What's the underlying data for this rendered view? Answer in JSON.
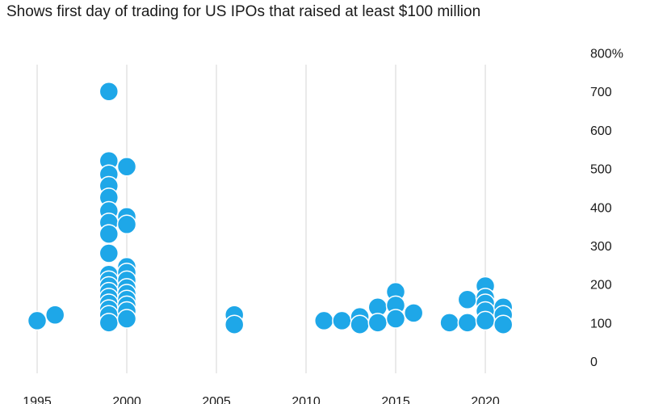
{
  "header": {
    "subtitle": "Shows first day of trading for US IPOs that raised at least $100 million"
  },
  "colors": {
    "dot": "#1ea7e8",
    "grid": "#d6d6d6",
    "text": "#1a1a1a"
  },
  "chart_data": {
    "type": "scatter",
    "title": "",
    "subtitle": "Shows first day of trading for US IPOs that raised at least $100 million",
    "xlabel": "",
    "ylabel": "",
    "x_ticks": [
      "1995",
      "2000",
      "2005",
      "2010",
      "2015",
      "2020"
    ],
    "y_ticks": [
      "0",
      "100",
      "200",
      "300",
      "400",
      "500",
      "600",
      "700",
      "800%"
    ],
    "xlim": [
      1995,
      2023
    ],
    "ylim": [
      0,
      800
    ],
    "y_axis_position": "right",
    "grid": "vertical",
    "series": [
      {
        "points": [
          [
            1995,
            105
          ],
          [
            1996,
            120
          ],
          [
            1999,
            700
          ],
          [
            1999,
            520
          ],
          [
            1999,
            485
          ],
          [
            1999,
            455
          ],
          [
            1999,
            425
          ],
          [
            1999,
            390
          ],
          [
            1999,
            360
          ],
          [
            1999,
            330
          ],
          [
            1999,
            280
          ],
          [
            1999,
            225
          ],
          [
            1999,
            210
          ],
          [
            1999,
            195
          ],
          [
            1999,
            180
          ],
          [
            1999,
            165
          ],
          [
            1999,
            150
          ],
          [
            1999,
            135
          ],
          [
            1999,
            120
          ],
          [
            1999,
            100
          ],
          [
            2000,
            505
          ],
          [
            2000,
            375
          ],
          [
            2000,
            355
          ],
          [
            2000,
            245
          ],
          [
            2000,
            230
          ],
          [
            2000,
            210
          ],
          [
            2000,
            190
          ],
          [
            2000,
            175
          ],
          [
            2000,
            160
          ],
          [
            2000,
            145
          ],
          [
            2000,
            130
          ],
          [
            2000,
            110
          ],
          [
            2006,
            120
          ],
          [
            2006,
            95
          ],
          [
            2011,
            105
          ],
          [
            2012,
            105
          ],
          [
            2013,
            115
          ],
          [
            2013,
            95
          ],
          [
            2014,
            140
          ],
          [
            2014,
            100
          ],
          [
            2015,
            180
          ],
          [
            2015,
            145
          ],
          [
            2015,
            110
          ],
          [
            2016,
            125
          ],
          [
            2018,
            100
          ],
          [
            2019,
            160
          ],
          [
            2019,
            100
          ],
          [
            2020,
            195
          ],
          [
            2020,
            165
          ],
          [
            2020,
            150
          ],
          [
            2020,
            130
          ],
          [
            2020,
            105
          ],
          [
            2021,
            140
          ],
          [
            2021,
            120
          ],
          [
            2021,
            95
          ]
        ]
      }
    ]
  }
}
